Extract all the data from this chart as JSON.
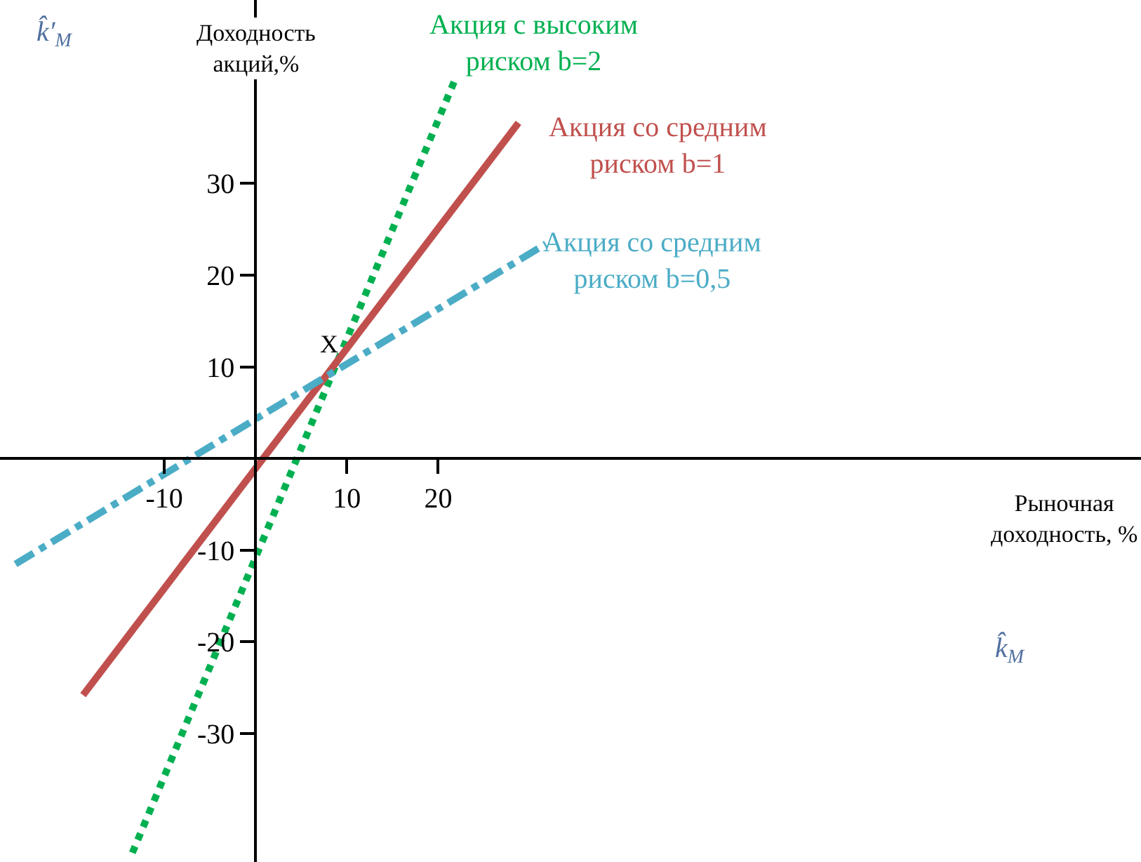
{
  "chart_data": {
    "type": "line",
    "xlabel": "Рыночная доходность, %",
    "ylabel": "Доходность акций,%",
    "xlim": [
      -28,
      97
    ],
    "ylim": [
      -44,
      50
    ],
    "xticks": [
      -10,
      10,
      20
    ],
    "yticks": [
      -30,
      -20,
      -10,
      10,
      20,
      30
    ],
    "grid": false,
    "legend": false,
    "marker": "none",
    "series": [
      {
        "name": "Акция с высоким риском b=2",
        "color": "#00b050",
        "line_style": "dotted",
        "x": [
          -13.5,
          21.8
        ],
        "values": [
          -43,
          41.2
        ]
      },
      {
        "name": "Акция со средним риском b=1",
        "color": "#c0504d",
        "line_style": "solid",
        "x": [
          -18.9,
          28.8
        ],
        "values": [
          -25.8,
          36.6
        ]
      },
      {
        "name": "Акция со средним риском b=0,5",
        "color": "#4bacc6",
        "line_style": "dashed",
        "x": [
          -26.3,
          31.8
        ],
        "values": [
          -11.5,
          23.4
        ]
      }
    ],
    "annotations": [
      "k̂′$_{M}$",
      "k̂$_{M}$",
      {
        "text": "X",
        "x": 10,
        "y": 10
      }
    ]
  }
}
